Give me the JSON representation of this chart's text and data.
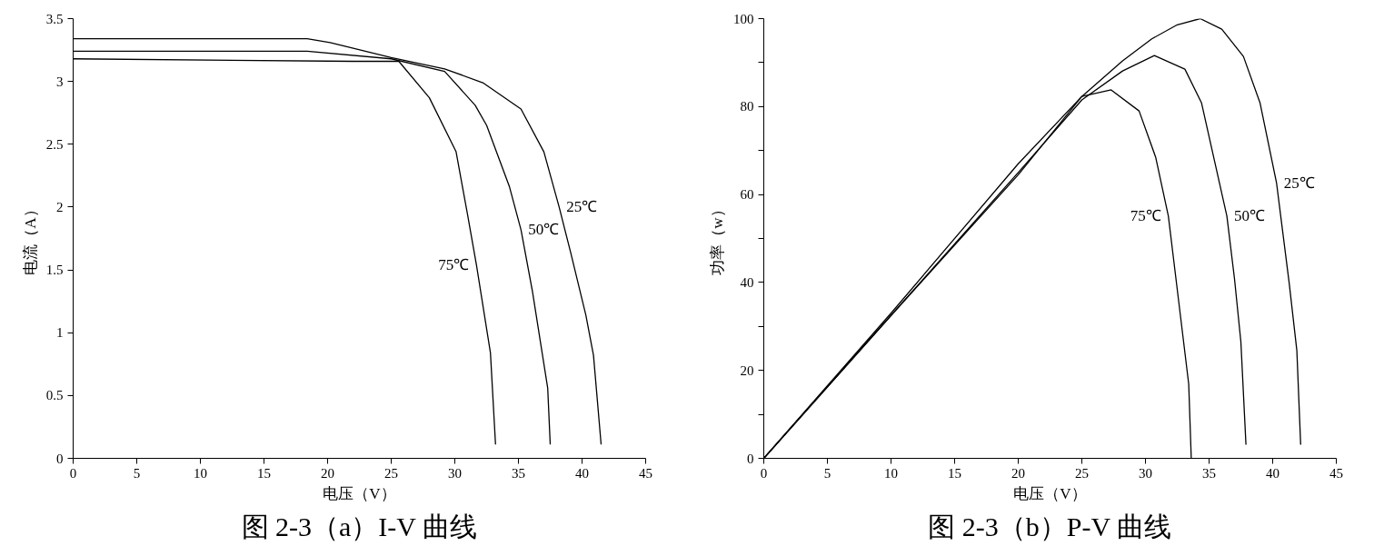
{
  "chart_data": [
    {
      "type": "line",
      "title": "图 2-3（a）I-V 曲线",
      "xlabel": "电压（V）",
      "ylabel": "电流（A）",
      "xlim": [
        0,
        45
      ],
      "ylim": [
        0,
        3.5
      ],
      "xticks": [
        0,
        5,
        10,
        15,
        20,
        25,
        30,
        35,
        40,
        45
      ],
      "yticks": [
        0,
        0.5,
        1,
        1.5,
        2,
        2.5,
        3,
        3.5
      ],
      "grid": false,
      "series": [
        {
          "name": "25℃",
          "color": "#000000",
          "x": [
            0,
            18.4,
            20.2,
            25.0,
            29.2,
            32.2,
            35.2,
            37.0,
            38.2,
            39.1,
            40.3,
            40.9,
            41.5
          ],
          "values": [
            3.34,
            3.34,
            3.31,
            3.19,
            3.1,
            2.99,
            2.78,
            2.44,
            2.0,
            1.64,
            1.14,
            0.82,
            0.11
          ]
        },
        {
          "name": "50℃",
          "color": "#000000",
          "x": [
            0,
            18.4,
            25.0,
            29.2,
            31.6,
            32.5,
            34.3,
            35.2,
            36.1,
            37.3,
            37.5
          ],
          "values": [
            3.24,
            3.24,
            3.18,
            3.08,
            2.81,
            2.65,
            2.16,
            1.82,
            1.33,
            0.56,
            0.11
          ]
        },
        {
          "name": "75℃",
          "color": "#000000",
          "x": [
            0,
            22.0,
            25.6,
            28.0,
            30.1,
            31.0,
            31.7,
            32.8,
            33.2
          ],
          "values": [
            3.18,
            3.16,
            3.16,
            2.87,
            2.44,
            1.94,
            1.54,
            0.84,
            0.11
          ]
        }
      ],
      "legend": false
    },
    {
      "type": "line",
      "title": "图 2-3（b）P-V 曲线",
      "xlabel": "电压（V）",
      "ylabel": "功率（w）",
      "xlim": [
        0,
        45
      ],
      "ylim": [
        0,
        100
      ],
      "xticks": [
        0,
        5,
        10,
        15,
        20,
        25,
        30,
        35,
        40,
        45
      ],
      "yticks": [
        0,
        {
          "value": 10,
          "label": null
        },
        20,
        {
          "value": 30,
          "label": null
        },
        40,
        {
          "value": 50,
          "label": null
        },
        60,
        {
          "value": 70,
          "label": null
        },
        80,
        {
          "value": 90,
          "label": null
        },
        100
      ],
      "grid": false,
      "series": [
        {
          "name": "25℃",
          "color": "#000000",
          "x": [
            0,
            10,
            20,
            25,
            28.2,
            30.5,
            32.5,
            34.3,
            36.0,
            37.7,
            39.0,
            40.3,
            41.3,
            41.9,
            42.2
          ],
          "values": [
            0,
            33,
            67,
            82.3,
            90.4,
            95.4,
            98.6,
            100,
            97.6,
            91.4,
            80.9,
            62.7,
            39.8,
            24.5,
            3.1
          ]
        },
        {
          "name": "50℃",
          "color": "#000000",
          "x": [
            0,
            10,
            20,
            25,
            28.2,
            30.7,
            33.1,
            34.4,
            36.4,
            37.0,
            37.5,
            37.9
          ],
          "values": [
            0,
            32.5,
            65,
            81.5,
            88.1,
            91.6,
            88.5,
            80.9,
            55.1,
            40.8,
            26.5,
            3.1
          ]
        },
        {
          "name": "75℃",
          "color": "#000000",
          "x": [
            0,
            10,
            20,
            25,
            27.3,
            29.5,
            30.8,
            31.8,
            32.6,
            33.4,
            33.6
          ],
          "values": [
            0,
            32.5,
            64.5,
            82.3,
            83.8,
            79,
            68.5,
            55.1,
            36,
            16.9,
            0
          ]
        }
      ],
      "legend": false
    }
  ]
}
